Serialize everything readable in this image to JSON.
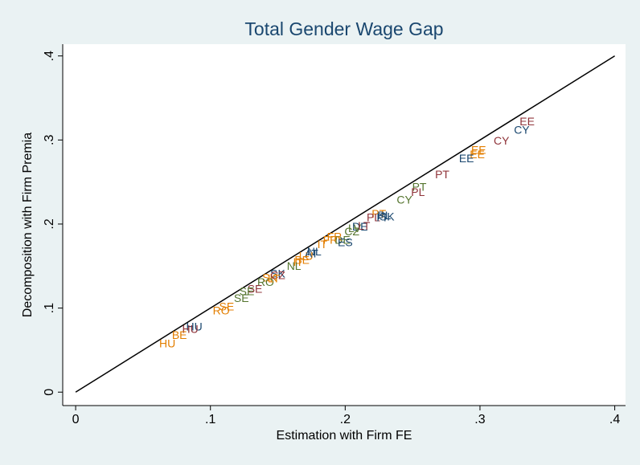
{
  "chart_data": {
    "type": "scatter",
    "title": "Total Gender Wage Gap",
    "x_label": "Estimation with Firm FE",
    "y_label": "Decomposition with Firm Premia",
    "xlim": [
      -0.0096,
      0.408
    ],
    "ylim": [
      -0.016,
      0.414
    ],
    "xticks": [
      0,
      {
        "value": 0.1,
        "label": ".1"
      },
      {
        "value": 0.2,
        "label": ".2"
      },
      {
        "value": 0.3,
        "label": ".3"
      },
      {
        "value": 0.4,
        "label": ".4"
      }
    ],
    "yticks": [
      0,
      {
        "value": 0.1,
        "label": ".1"
      },
      {
        "value": 0.2,
        "label": ".2"
      },
      {
        "value": 0.3,
        "label": ".3"
      },
      {
        "value": 0.4,
        "label": ".4"
      }
    ],
    "x": [
      0.335,
      0.331,
      0.316,
      0.299,
      0.298,
      0.29,
      0.272,
      0.255,
      0.254,
      0.244,
      0.225,
      0.221,
      0.227,
      0.229,
      0.231,
      0.207,
      0.211,
      0.214,
      0.205,
      0.189,
      0.183,
      0.198,
      0.2,
      0.192,
      0.177,
      0.171,
      0.175,
      0.165,
      0.168,
      0.162,
      0.15,
      0.144,
      0.15,
      0.141,
      0.147,
      0.133,
      0.127,
      0.123,
      0.112,
      0.108,
      0.088,
      0.085,
      0.077,
      0.068
    ],
    "values": [
      0.321,
      0.311,
      0.298,
      0.287,
      0.282,
      0.277,
      0.258,
      0.243,
      0.237,
      0.228,
      0.211,
      0.207,
      0.207,
      0.209,
      0.208,
      0.194,
      0.196,
      0.197,
      0.19,
      0.18,
      0.175,
      0.18,
      0.177,
      0.184,
      0.166,
      0.161,
      0.164,
      0.154,
      0.156,
      0.149,
      0.14,
      0.135,
      0.138,
      0.13,
      0.134,
      0.122,
      0.119,
      0.111,
      0.101,
      0.096,
      0.077,
      0.074,
      0.067,
      0.057
    ],
    "labels": [
      "EE",
      "CY",
      "CY",
      "EE",
      "EE",
      "EE",
      "PT",
      "PT",
      "PL",
      "CY",
      "PT",
      "PL",
      "FI",
      "PL",
      "SK",
      "LV",
      "DE",
      "LT",
      "CZ",
      "FR",
      "IT",
      "DE",
      "ES",
      "FR",
      "NL",
      "LU",
      "AT",
      "IT",
      "BE",
      "NL",
      "SK",
      "SK",
      "CZ",
      "RO",
      "LT",
      "SE",
      "SE",
      "SE",
      "SE",
      "RO",
      "HU",
      "HU",
      "BE",
      "HU"
    ],
    "colors": [
      "#90353b",
      "#1a476f",
      "#90353b",
      "#e37e00",
      "#e37e00",
      "#1a476f",
      "#90353b",
      "#55752f",
      "#90353b",
      "#55752f",
      "#e37e00",
      "#90353b",
      "#1a476f",
      "#1a476f",
      "#1a476f",
      "#55752f",
      "#1a476f",
      "#90353b",
      "#55752f",
      "#e37e00",
      "#e37e00",
      "#55752f",
      "#1a476f",
      "#e37e00",
      "#1a476f",
      "#e37e00",
      "#1a476f",
      "#e37e00",
      "#e37e00",
      "#55752f",
      "#1a476f",
      "#e37e00",
      "#90353b",
      "#55752f",
      "#e37e00",
      "#90353b",
      "#55752f",
      "#55752f",
      "#e37e00",
      "#e37e00",
      "#1a476f",
      "#90353b",
      "#e37e00",
      "#e37e00"
    ]
  }
}
